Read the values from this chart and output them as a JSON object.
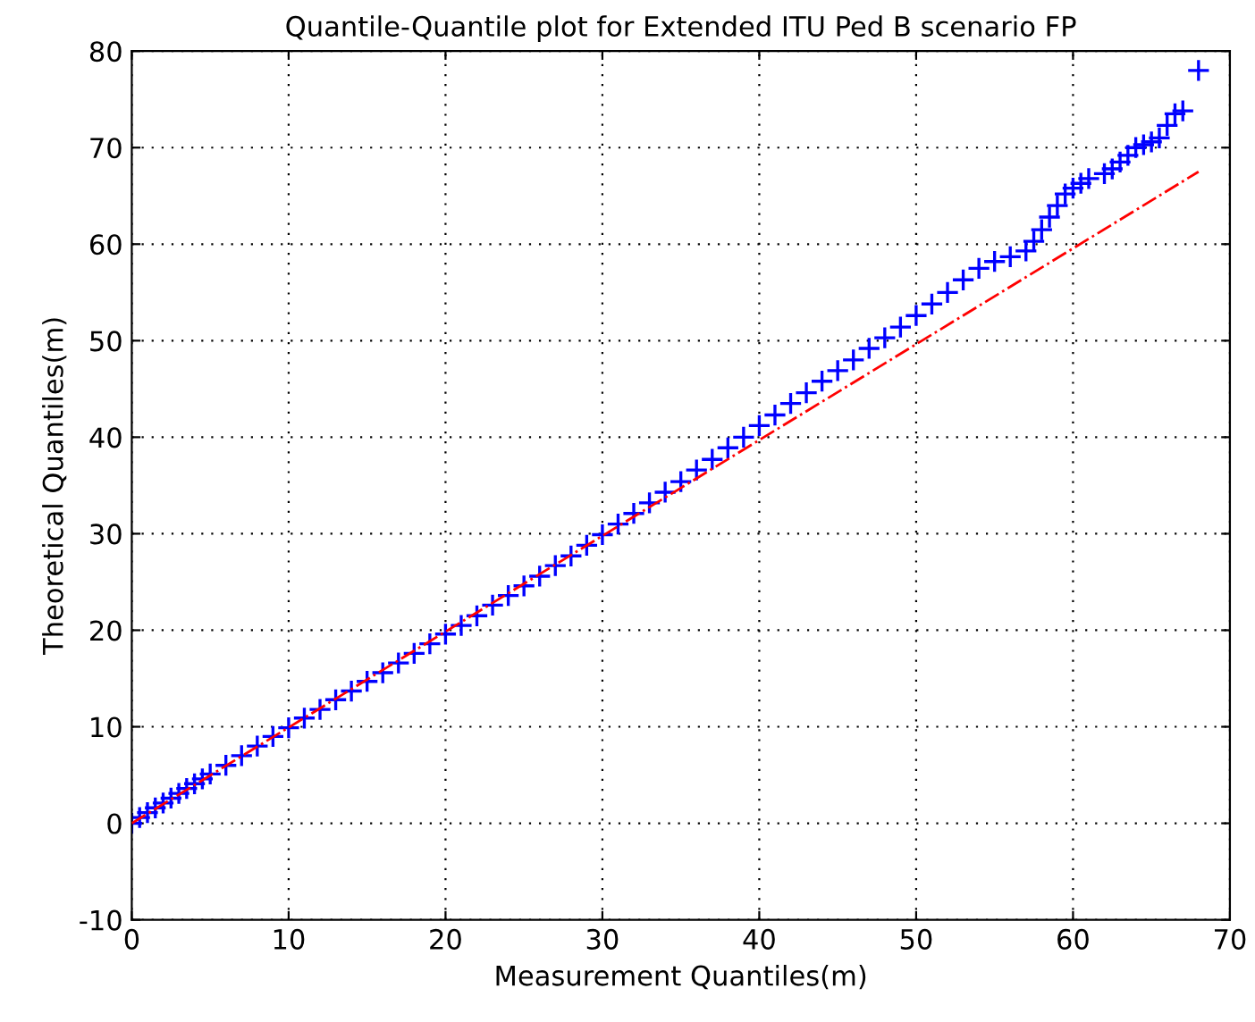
{
  "chart_data": {
    "type": "scatter",
    "title": "Quantile-Quantile plot for Extended ITU Ped B scenario FP",
    "xlabel": "Measurement Quantiles(m)",
    "ylabel": "Theoretical Quantiles(m)",
    "xlim": [
      0,
      70
    ],
    "ylim": [
      -10,
      80
    ],
    "xticks": [
      0,
      10,
      20,
      30,
      40,
      50,
      60,
      70
    ],
    "yticks": [
      -10,
      0,
      10,
      20,
      30,
      40,
      50,
      60,
      70,
      80
    ],
    "grid": true,
    "marker": "cross",
    "series": [
      {
        "type": "line",
        "color": "#ff0000",
        "line_style": "dashdot",
        "marker": "none",
        "x": [
          0,
          68
        ],
        "values": [
          0,
          67.5
        ]
      },
      {
        "color": "#0000ff",
        "x": [
          0,
          0.5,
          1,
          1.5,
          2,
          2.5,
          3,
          3.5,
          4,
          4.5,
          5,
          6,
          7,
          8,
          9,
          10,
          11,
          12,
          13,
          14,
          15,
          16,
          17,
          18,
          19,
          20,
          21,
          22,
          23,
          24,
          25,
          26,
          27,
          28,
          29,
          30,
          31,
          32,
          33,
          34,
          35,
          36,
          37,
          38,
          39,
          40,
          41,
          42,
          43,
          44,
          45,
          46,
          47,
          48,
          49,
          50,
          51,
          52,
          53,
          54,
          55,
          56,
          57,
          57.5,
          58,
          58.5,
          59,
          59.5,
          60,
          60.5,
          61,
          62,
          62.5,
          63,
          63.5,
          64,
          64.5,
          65,
          65.5,
          66,
          66.5,
          67,
          68
        ],
        "values": [
          0,
          0.6,
          1.1,
          1.6,
          2.1,
          2.6,
          3.1,
          3.6,
          4.1,
          4.6,
          5.1,
          6.0,
          7.0,
          8.0,
          9.0,
          9.9,
          10.9,
          11.8,
          12.8,
          13.7,
          14.7,
          15.6,
          16.6,
          17.6,
          18.6,
          19.6,
          20.5,
          21.5,
          22.6,
          23.6,
          24.6,
          25.6,
          26.7,
          27.7,
          28.8,
          29.9,
          31.0,
          32.1,
          33.2,
          34.3,
          35.4,
          36.6,
          37.7,
          38.9,
          40.0,
          41.2,
          42.3,
          43.5,
          44.6,
          45.8,
          46.9,
          48.0,
          49.2,
          50.3,
          51.4,
          52.6,
          53.8,
          55.0,
          56.3,
          57.5,
          58.2,
          58.7,
          59.3,
          60.3,
          61.5,
          62.8,
          64.0,
          65.2,
          65.8,
          66.3,
          66.8,
          67.3,
          67.8,
          68.5,
          69.2,
          70.0,
          70.3,
          70.6,
          71.0,
          72.3,
          73.5,
          73.8,
          78.0
        ]
      }
    ]
  }
}
